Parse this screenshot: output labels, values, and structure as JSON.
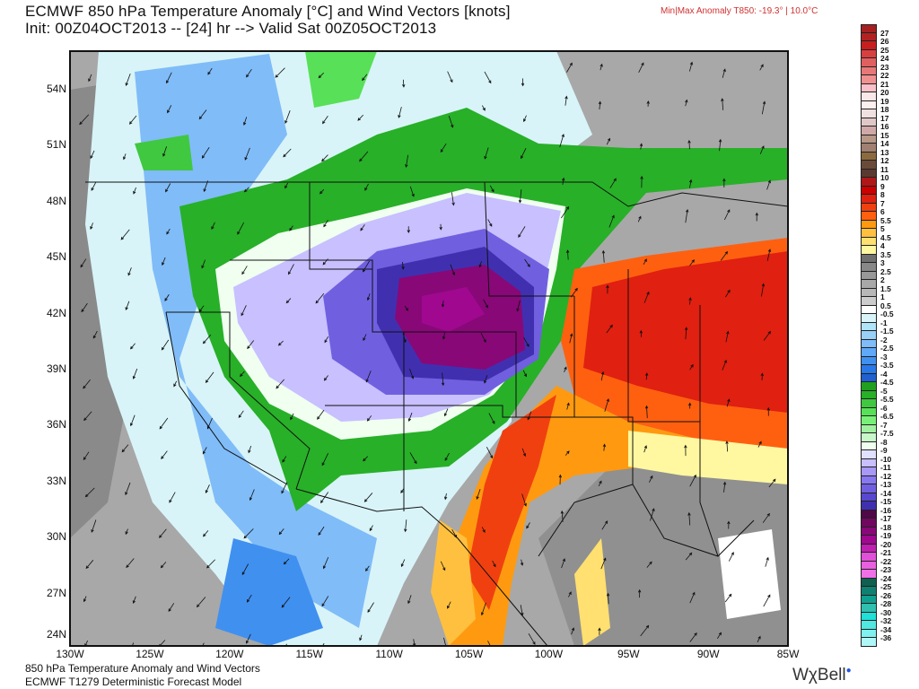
{
  "header": {
    "title": "ECMWF 850 hPa Temperature Anomaly [°C] and Wind Vectors [knots]",
    "subtitle": "Init: 00Z04OCT2013 -- [24] hr --> Valid Sat 00Z05OCT2013",
    "minmax": "Min|Max Anomaly T850: -19.3° |   10.0°C"
  },
  "map": {
    "lat_labels": [
      "54N",
      "51N",
      "48N",
      "45N",
      "42N",
      "39N",
      "36N",
      "33N",
      "30N",
      "27N",
      "24N"
    ],
    "lon_labels": [
      "130W",
      "125W",
      "120W",
      "115W",
      "110W",
      "105W",
      "100W",
      "95W",
      "90W",
      "85W"
    ],
    "anomaly_min": -19.3,
    "anomaly_max": 10.0
  },
  "footer": {
    "line1": "850 hPa Temperature Anomaly and Wind Vectors",
    "line2": "ECMWF T1279 Deterministic Forecast Model",
    "logo": "WχBell"
  },
  "colorbar": {
    "labels": [
      "27",
      "26",
      "25",
      "24",
      "23",
      "22",
      "21",
      "20",
      "19",
      "18",
      "17",
      "16",
      "15",
      "14",
      "13",
      "12",
      "11",
      "10",
      "9",
      "8",
      "7",
      "6",
      "5.5",
      "5",
      "4.5",
      "4",
      "3.5",
      "3",
      "2.5",
      "2",
      "1.5",
      "1",
      "0.5",
      "-0.5",
      "-1",
      "-1.5",
      "-2",
      "-2.5",
      "-3",
      "-3.5",
      "-4",
      "-4.5",
      "-5",
      "-5.5",
      "-6",
      "-6.5",
      "-7",
      "-7.5",
      "-8",
      "-9",
      "-10",
      "-11",
      "-12",
      "-13",
      "-14",
      "-15",
      "-16",
      "-17",
      "-18",
      "-19",
      "-20",
      "-21",
      "-22",
      "-23",
      "-24",
      "-25",
      "-26",
      "-28",
      "-30",
      "-32",
      "-34",
      "-36"
    ],
    "colors": [
      "#a52020",
      "#b22222",
      "#c81e1e",
      "#d84040",
      "#e06060",
      "#e87878",
      "#f09090",
      "#f8c0c8",
      "#f8e8e8",
      "#fff0f0",
      "#f0e0e0",
      "#e0c8c8",
      "#d0a8a8",
      "#b89888",
      "#a08070",
      "#8c6a40",
      "#6a4a38",
      "#5a3a30",
      "#b01818",
      "#cc0000",
      "#e02010",
      "#f04010",
      "#ff6010",
      "#ff9a10",
      "#ffc040",
      "#ffe070",
      "#fff8a0",
      "#707070",
      "#888888",
      "#989898",
      "#a8a8a8",
      "#b8b8b8",
      "#cccccc",
      "#ffffff",
      "#d8f4f8",
      "#b0e4f8",
      "#98d0f8",
      "#80bcf8",
      "#60a8f8",
      "#4090f0",
      "#2878e8",
      "#2060d0",
      "#20a020",
      "#28b028",
      "#40c840",
      "#58e058",
      "#78f078",
      "#a0f0a0",
      "#c8f8c8",
      "#f0fff0",
      "#e0e0ff",
      "#c8c0ff",
      "#a898f8",
      "#8878f0",
      "#7060e0",
      "#5848d0",
      "#4030b0",
      "#500848",
      "#700860",
      "#880878",
      "#a00890",
      "#c020b0",
      "#e050d8",
      "#e860e0",
      "#f070e8",
      "#106050",
      "#108070",
      "#10a090",
      "#30c0b0",
      "#20e0d8",
      "#50e8e0",
      "#80f0f0",
      "#b0f8f8"
    ]
  }
}
